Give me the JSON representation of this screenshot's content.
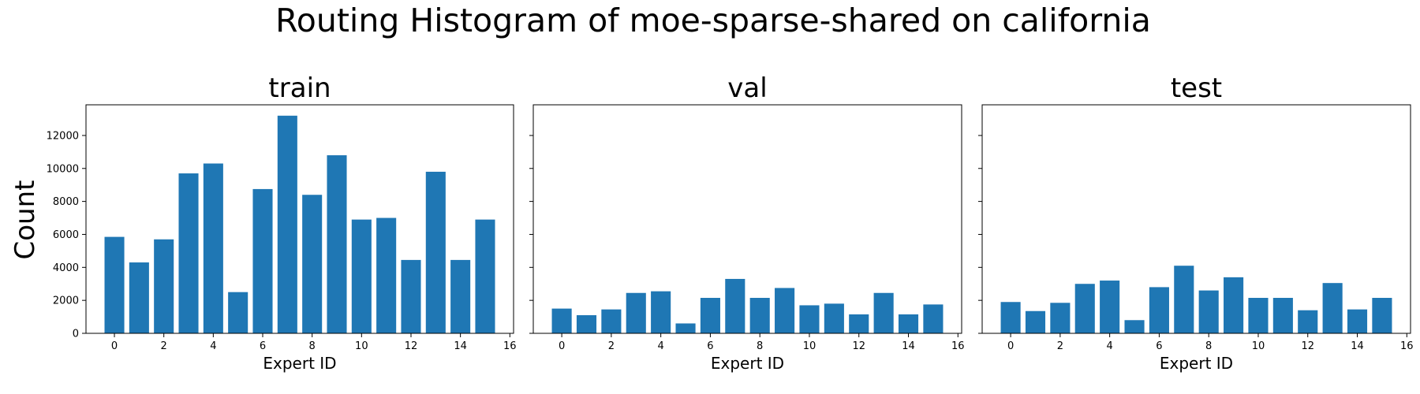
{
  "figure": {
    "suptitle": "Routing Histogram of moe-sparse-shared on california",
    "ylabel": "Count",
    "bar_color": "#1f77b4"
  },
  "chart_data": [
    {
      "type": "bar",
      "title": "train",
      "xlabel": "Expert ID",
      "ylabel": "Count",
      "categories": [
        0,
        1,
        2,
        3,
        4,
        5,
        6,
        7,
        8,
        9,
        10,
        11,
        12,
        13,
        14,
        15
      ],
      "values": [
        5850,
        4300,
        5700,
        9700,
        10300,
        2500,
        8750,
        13200,
        8400,
        10800,
        6900,
        7000,
        4450,
        9800,
        4450,
        6900
      ],
      "xticks": [
        0,
        2,
        4,
        6,
        8,
        10,
        12,
        14,
        16
      ],
      "yticks": [
        0,
        2000,
        4000,
        6000,
        8000,
        10000,
        12000
      ],
      "xlim": [
        -1.15,
        16.15
      ],
      "ylim": [
        0,
        13860
      ],
      "show_yticklabels": true
    },
    {
      "type": "bar",
      "title": "val",
      "xlabel": "Expert ID",
      "ylabel": "",
      "categories": [
        0,
        1,
        2,
        3,
        4,
        5,
        6,
        7,
        8,
        9,
        10,
        11,
        12,
        13,
        14,
        15
      ],
      "values": [
        1500,
        1100,
        1450,
        2450,
        2550,
        600,
        2150,
        3300,
        2150,
        2750,
        1700,
        1800,
        1150,
        2450,
        1150,
        1750
      ],
      "xticks": [
        0,
        2,
        4,
        6,
        8,
        10,
        12,
        14,
        16
      ],
      "yticks": [
        0,
        2000,
        4000,
        6000,
        8000,
        10000,
        12000
      ],
      "xlim": [
        -1.15,
        16.15
      ],
      "ylim": [
        0,
        13860
      ],
      "show_yticklabels": false
    },
    {
      "type": "bar",
      "title": "test",
      "xlabel": "Expert ID",
      "ylabel": "",
      "categories": [
        0,
        1,
        2,
        3,
        4,
        5,
        6,
        7,
        8,
        9,
        10,
        11,
        12,
        13,
        14,
        15
      ],
      "values": [
        1900,
        1350,
        1850,
        3000,
        3200,
        800,
        2800,
        4100,
        2600,
        3400,
        2150,
        2150,
        1400,
        3050,
        1450,
        2150
      ],
      "xticks": [
        0,
        2,
        4,
        6,
        8,
        10,
        12,
        14,
        16
      ],
      "yticks": [
        0,
        2000,
        4000,
        6000,
        8000,
        10000,
        12000
      ],
      "xlim": [
        -1.15,
        16.15
      ],
      "ylim": [
        0,
        13860
      ],
      "show_yticklabels": false
    }
  ]
}
